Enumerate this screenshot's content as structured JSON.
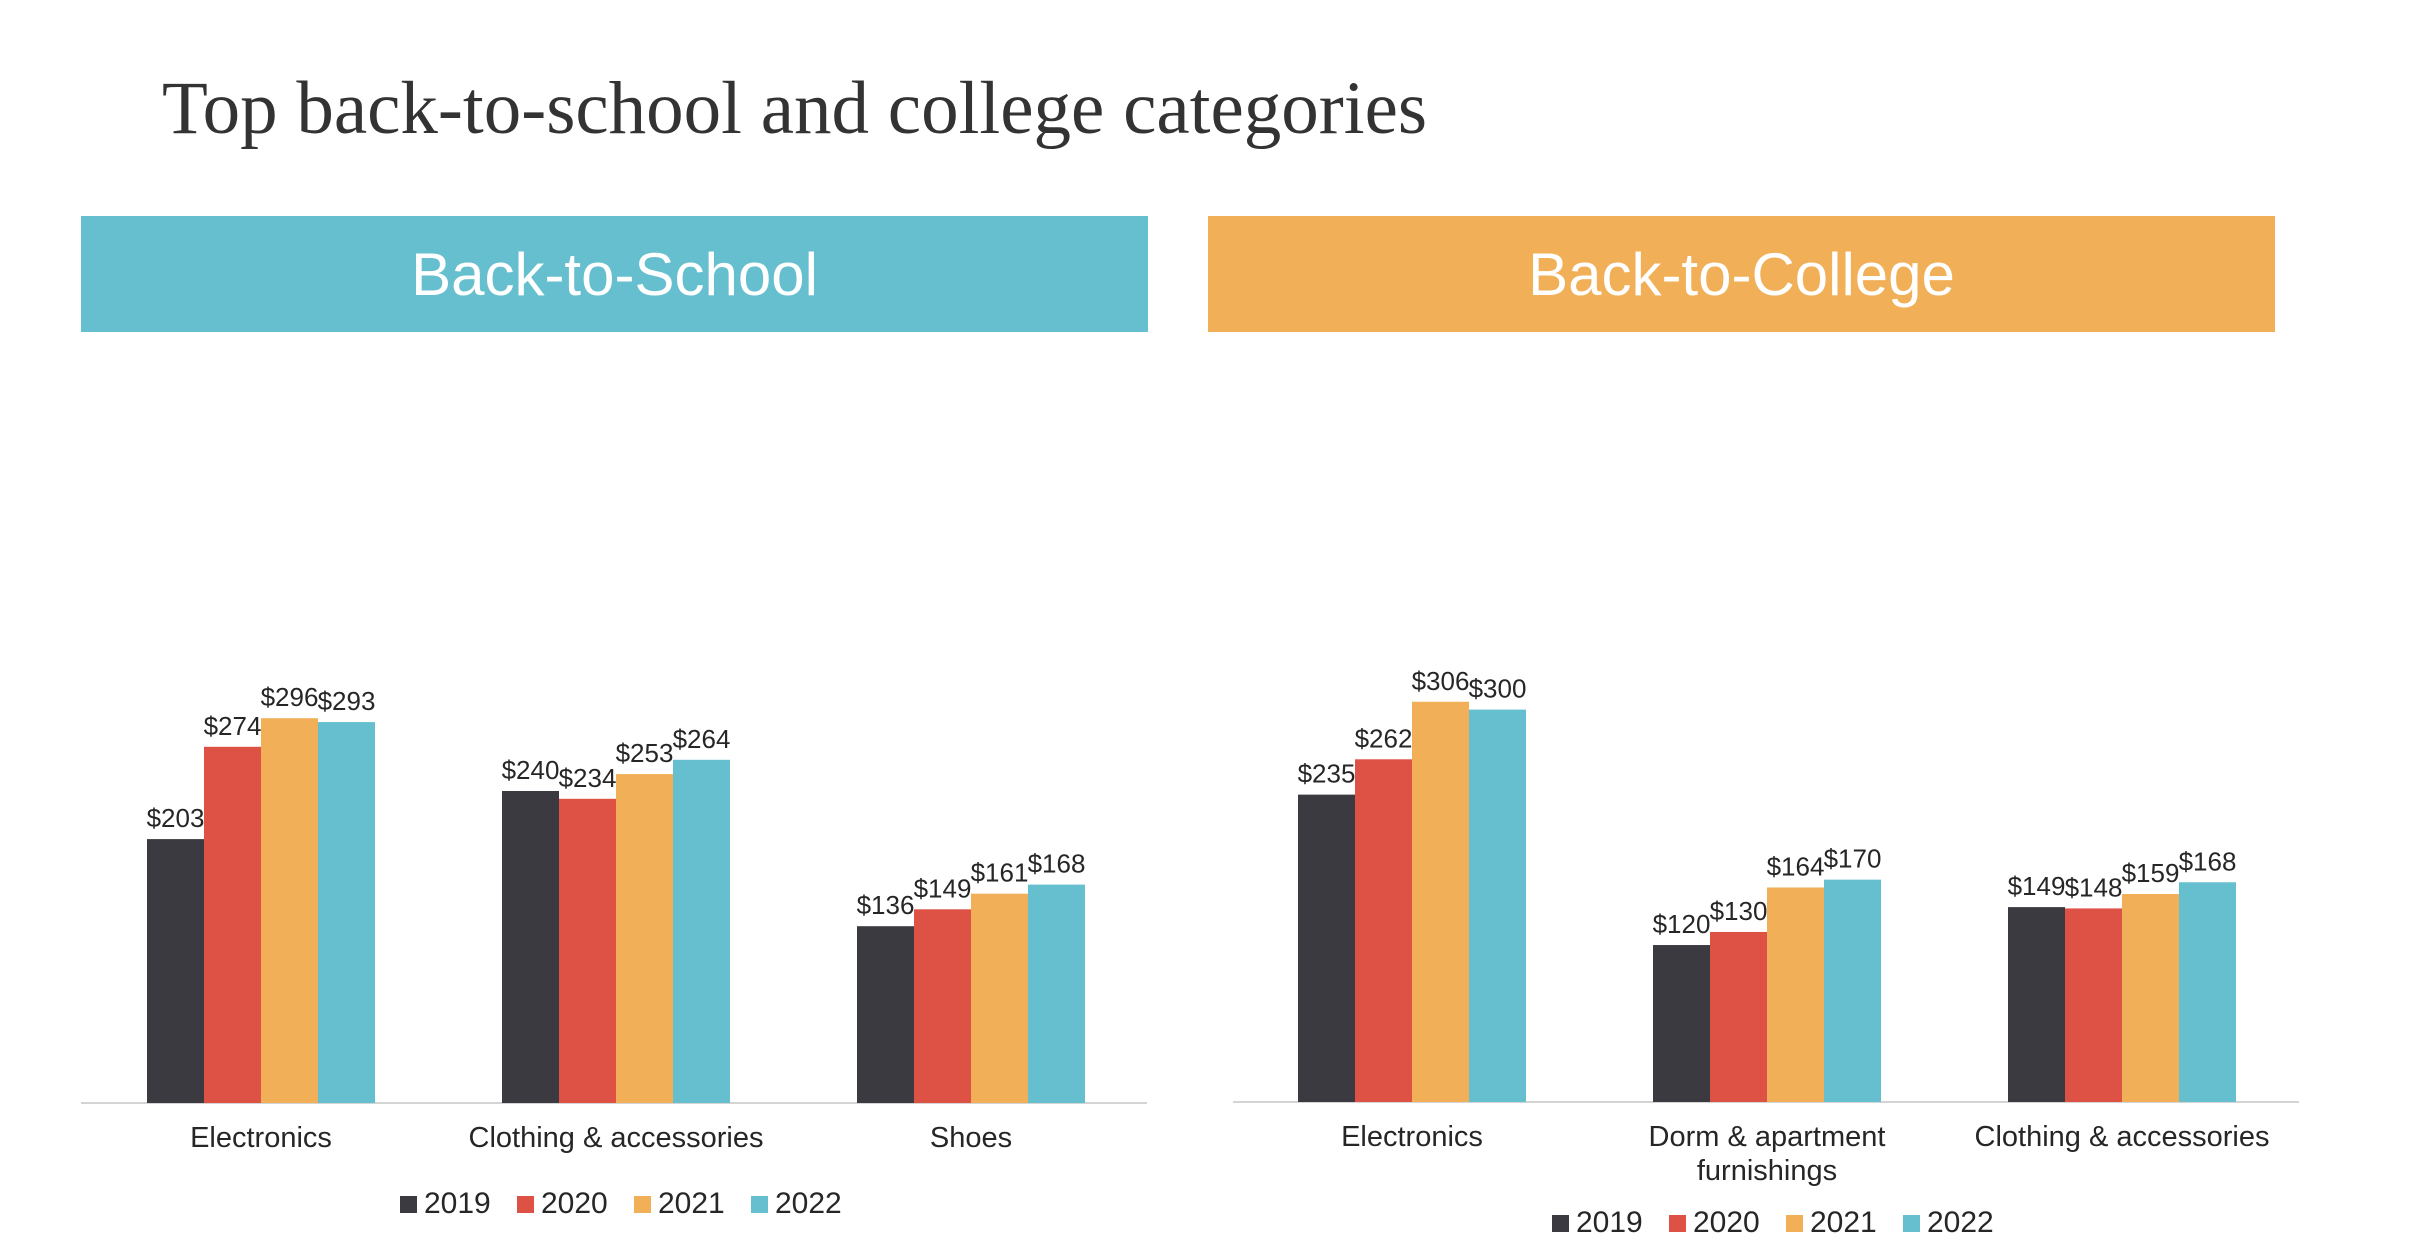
{
  "page": {
    "title": "Top back-to-school and college categories"
  },
  "colors": {
    "2019": "#3a3a40",
    "2020": "#de5246",
    "2021": "#f1af57",
    "2022": "#65bfcf",
    "banner_school": "#65bfcf",
    "banner_college": "#f1af57"
  },
  "chart_data": [
    {
      "type": "bar",
      "title": "Back-to-School",
      "categories": [
        "Electronics",
        "Clothing & accessories",
        "Shoes"
      ],
      "series": [
        {
          "name": "2019",
          "values": [
            203,
            240,
            136
          ]
        },
        {
          "name": "2020",
          "values": [
            274,
            234,
            149
          ]
        },
        {
          "name": "2021",
          "values": [
            296,
            253,
            161
          ]
        },
        {
          "name": "2022",
          "values": [
            293,
            264,
            168
          ]
        }
      ],
      "value_prefix": "$",
      "xlabel": "",
      "ylabel": "",
      "ylim": [
        0,
        320
      ],
      "legend": "bottom",
      "grid": false
    },
    {
      "type": "bar",
      "title": "Back-to-College",
      "categories": [
        "Electronics",
        "Dorm & apartment furnishings",
        "Clothing & accessories"
      ],
      "category_lines": [
        [
          "Electronics"
        ],
        [
          "Dorm & apartment",
          "furnishings"
        ],
        [
          "Clothing & accessories"
        ]
      ],
      "series": [
        {
          "name": "2019",
          "values": [
            235,
            120,
            149
          ]
        },
        {
          "name": "2020",
          "values": [
            262,
            130,
            148
          ]
        },
        {
          "name": "2021",
          "values": [
            306,
            164,
            159
          ]
        },
        {
          "name": "2022",
          "values": [
            300,
            170,
            168
          ]
        }
      ],
      "value_prefix": "$",
      "xlabel": "",
      "ylabel": "",
      "ylim": [
        0,
        330
      ],
      "legend": "bottom",
      "grid": false
    }
  ]
}
